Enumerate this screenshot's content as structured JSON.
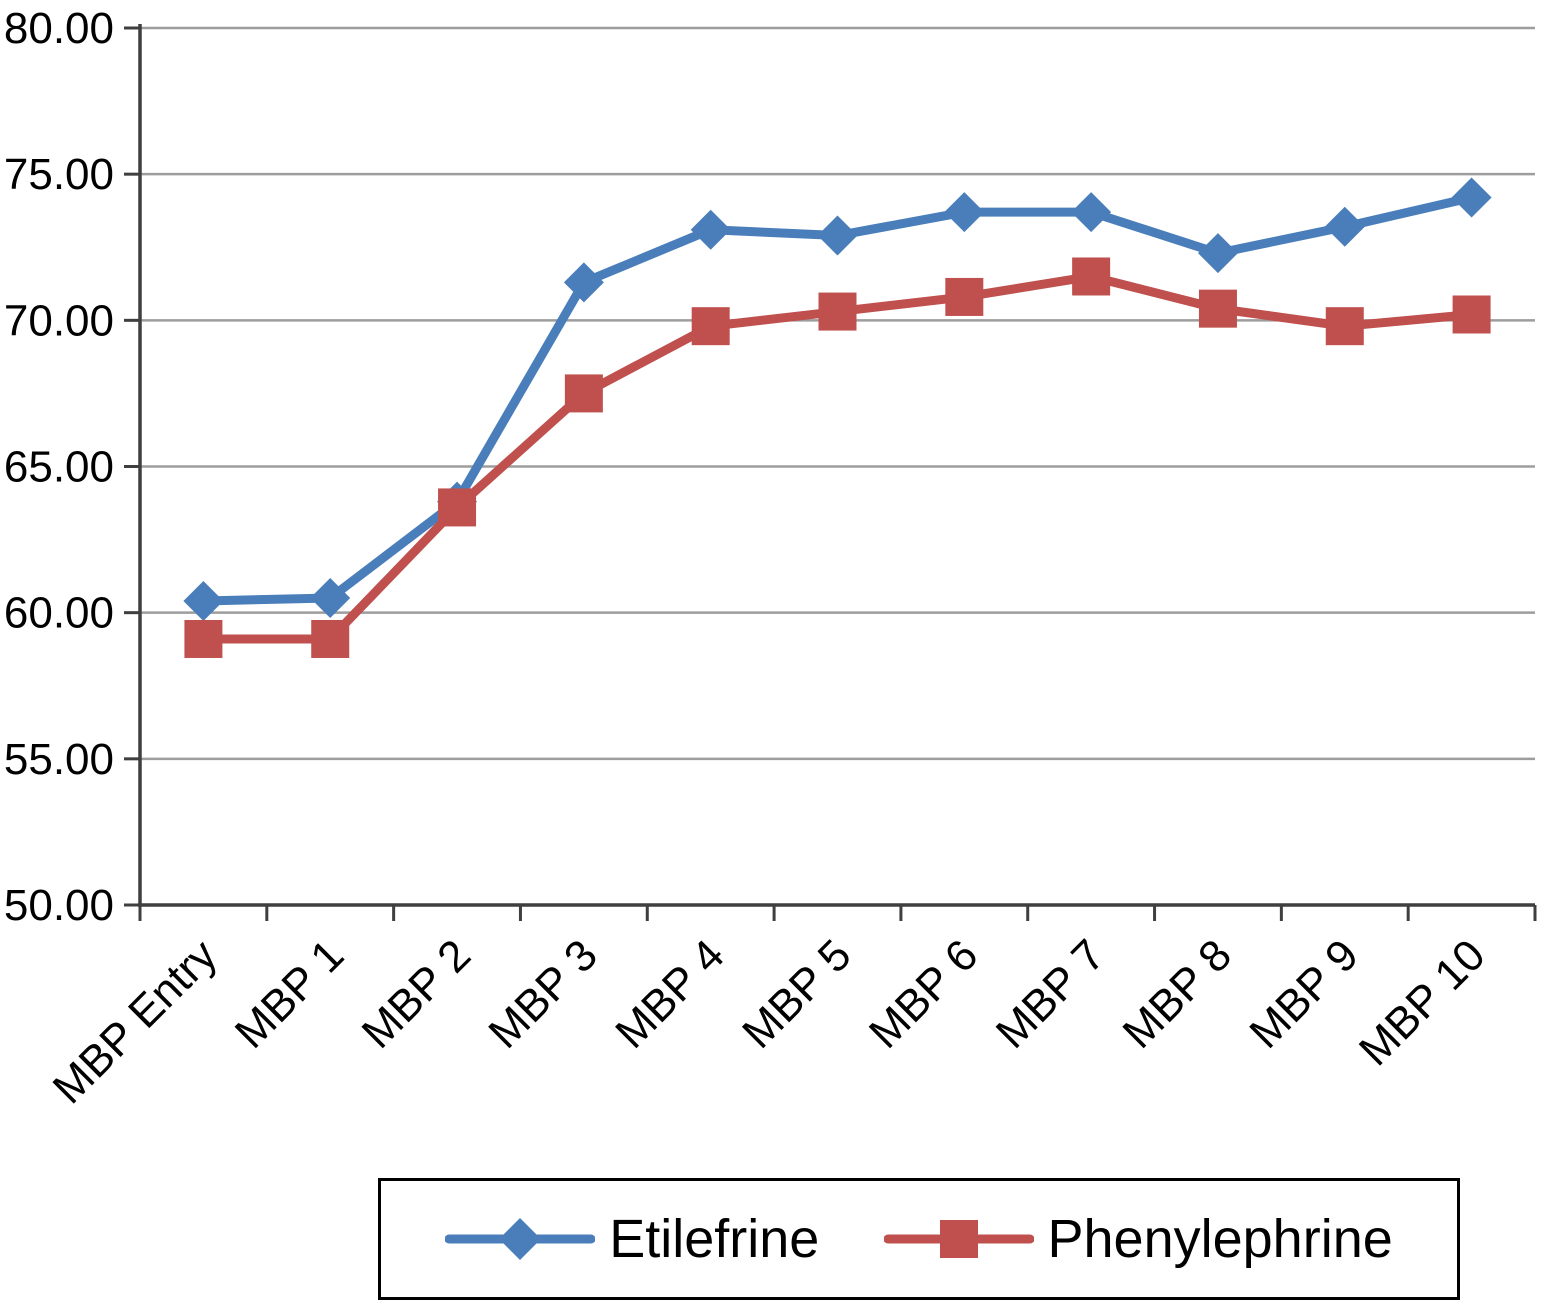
{
  "chart_data": {
    "type": "line",
    "title": "",
    "xlabel": "",
    "ylabel": "",
    "categories": [
      "MBP Entry",
      "MBP 1",
      "MBP 2",
      "MBP 3",
      "MBP 4",
      "MBP 5",
      "MBP 6",
      "MBP 7",
      "MBP 8",
      "MBP 9",
      "MBP 10"
    ],
    "series": [
      {
        "name": "Etilefrine",
        "color": "#4a7ebb",
        "marker": "diamond",
        "values": [
          60.4,
          60.5,
          63.8,
          71.3,
          73.1,
          72.9,
          73.7,
          73.7,
          72.3,
          73.2,
          74.2
        ]
      },
      {
        "name": "Phenylephrine",
        "color": "#c0504d",
        "marker": "square",
        "values": [
          59.1,
          59.1,
          63.6,
          67.5,
          69.8,
          70.3,
          70.8,
          71.5,
          70.4,
          69.8,
          70.2
        ]
      }
    ],
    "ylim": [
      50,
      80
    ],
    "ytick_step": 5,
    "ytick_labels": [
      "50.00",
      "55.00",
      "60.00",
      "65.00",
      "70.00",
      "75.00",
      "80.00"
    ],
    "grid": true,
    "legend_position": "bottom",
    "colors": {
      "grid": "#9d9d9d",
      "axis": "#3f3f3f",
      "text": "#000000"
    }
  }
}
